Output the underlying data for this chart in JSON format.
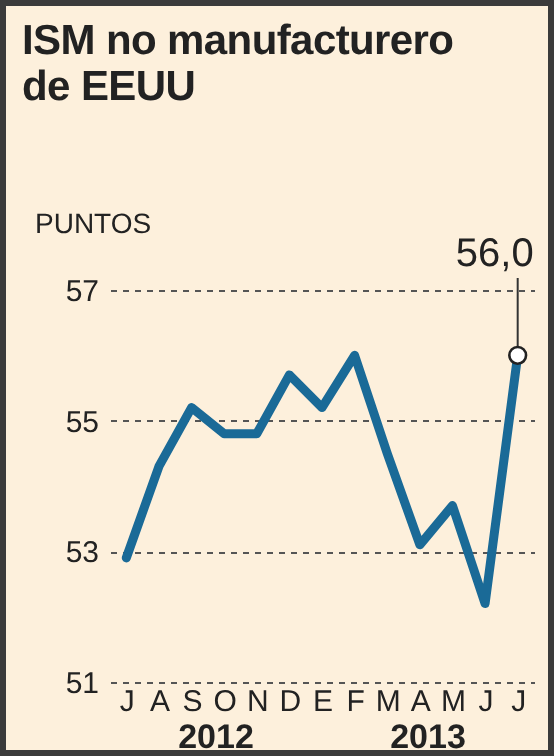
{
  "chart_data": {
    "type": "line",
    "title": "ISM no manufacturero de EEUU",
    "ylabel": "PUNTOS",
    "categories": [
      "J",
      "A",
      "S",
      "O",
      "N",
      "D",
      "E",
      "F",
      "M",
      "A",
      "M",
      "J",
      "J"
    ],
    "series": [
      {
        "color": "#1a6a97",
        "values": [
          52.9,
          54.3,
          55.2,
          54.8,
          54.8,
          55.7,
          55.2,
          56.0,
          54.5,
          53.1,
          53.7,
          52.2,
          56.0
        ],
        "value_labels": [
          null,
          null,
          null,
          null,
          null,
          null,
          null,
          null,
          null,
          null,
          null,
          null,
          "56,0"
        ]
      }
    ],
    "ylim": [
      51,
      57
    ],
    "yticks": [
      51,
      53,
      55,
      57
    ],
    "grid": "y",
    "line_style": "solid",
    "annotations": [
      "2012",
      "2013"
    ]
  }
}
